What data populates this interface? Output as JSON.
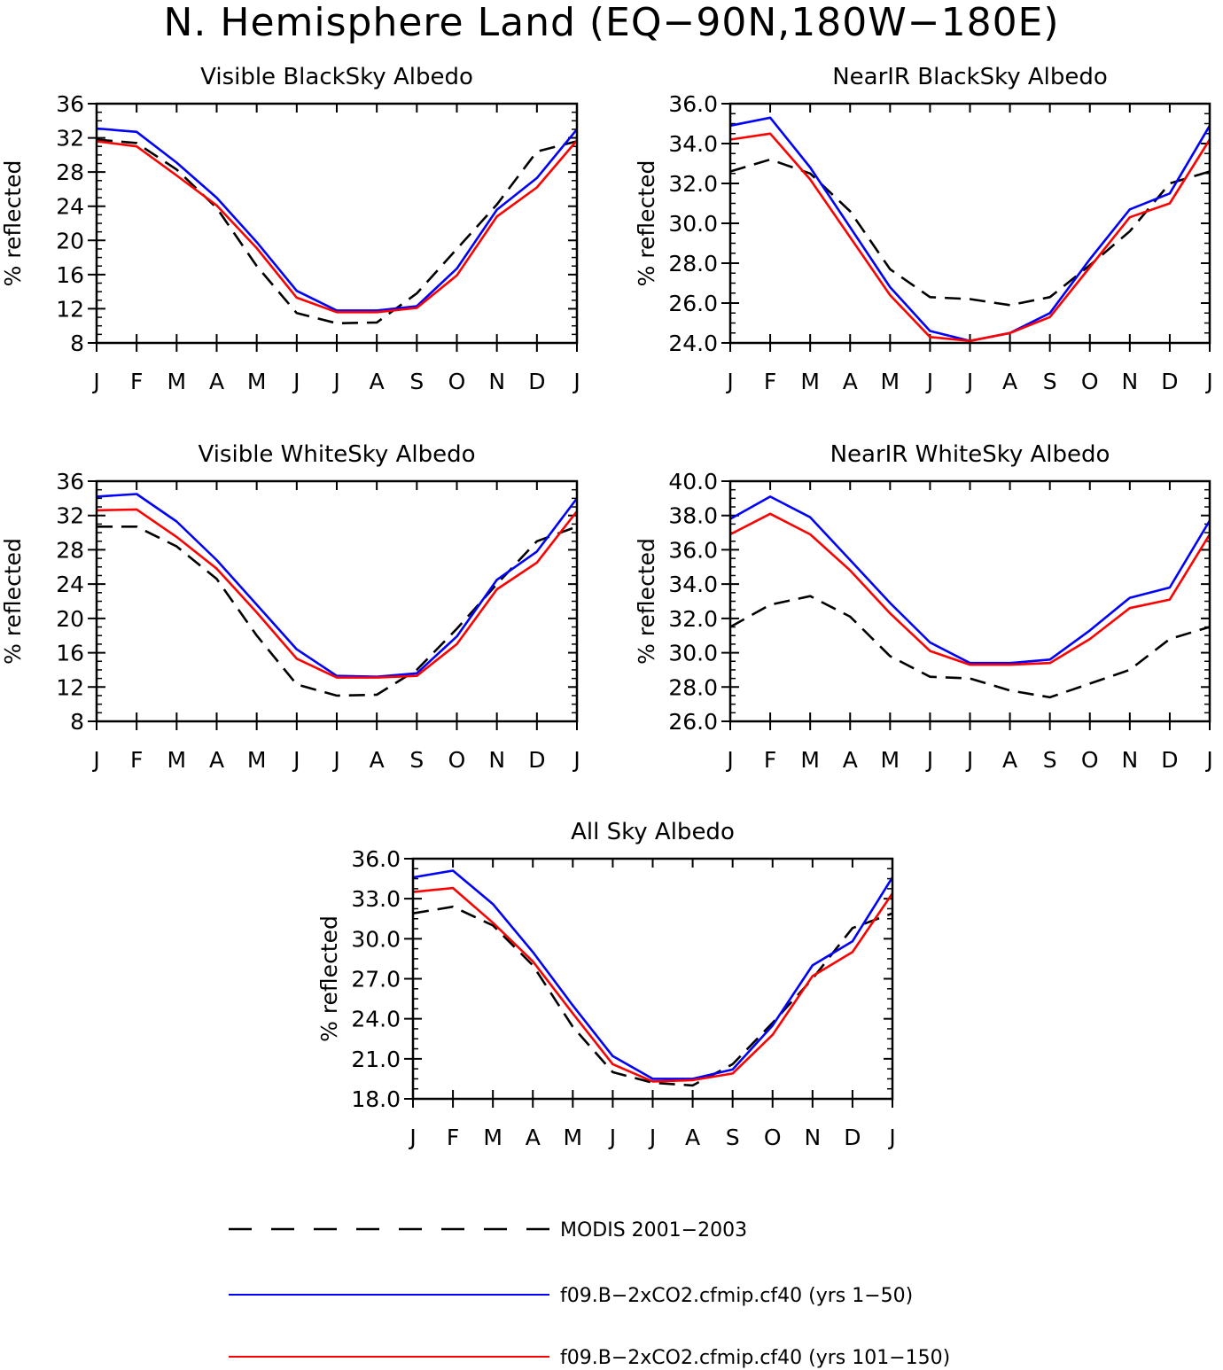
{
  "page": {
    "title": "N. Hemisphere Land (EQ−90N,180W−180E)"
  },
  "colors": {
    "modis": "#000000",
    "run1": "#0000ff",
    "run2": "#ff0000"
  },
  "legend": {
    "items": [
      {
        "key": "modis",
        "label": "MODIS 2001−2003",
        "style": "dashed"
      },
      {
        "key": "run1",
        "label": "f09.B−2xCO2.cfmip.cf40 (yrs 1−50)",
        "style": "solid"
      },
      {
        "key": "run2",
        "label": "f09.B−2xCO2.cfmip.cf40 (yrs 101−150)",
        "style": "solid"
      }
    ]
  },
  "chart_data": [
    {
      "type": "line",
      "title": "Visible BlackSky Albedo",
      "ylabel": "% reflected",
      "categories": [
        "J",
        "F",
        "M",
        "A",
        "M",
        "J",
        "J",
        "A",
        "S",
        "O",
        "N",
        "D",
        "J"
      ],
      "ylim": [
        8,
        36
      ],
      "yticks": [
        "8",
        "12",
        "16",
        "20",
        "24",
        "28",
        "32",
        "36"
      ],
      "series": [
        {
          "key": "modis",
          "values": [
            31.8,
            31.4,
            28.3,
            23.8,
            17.0,
            11.5,
            10.3,
            10.4,
            13.8,
            19.0,
            24.2,
            30.4,
            31.6
          ]
        },
        {
          "key": "run1",
          "values": [
            33.1,
            32.7,
            29.1,
            25.0,
            19.8,
            14.1,
            11.8,
            11.8,
            12.3,
            16.7,
            23.6,
            27.3,
            33.0
          ]
        },
        {
          "key": "run2",
          "values": [
            31.6,
            31.0,
            27.6,
            24.1,
            19.1,
            13.3,
            11.6,
            11.6,
            12.1,
            15.9,
            22.8,
            26.2,
            31.7
          ]
        }
      ]
    },
    {
      "type": "line",
      "title": "NearIR BlackSky Albedo",
      "ylabel": "% reflected",
      "categories": [
        "J",
        "F",
        "M",
        "A",
        "M",
        "J",
        "J",
        "A",
        "S",
        "O",
        "N",
        "D",
        "J"
      ],
      "ylim": [
        24,
        36
      ],
      "yticks": [
        "24.0",
        "26.0",
        "28.0",
        "30.0",
        "32.0",
        "34.0",
        "36.0"
      ],
      "series": [
        {
          "key": "modis",
          "values": [
            32.6,
            33.2,
            32.5,
            30.6,
            27.7,
            26.3,
            26.2,
            25.9,
            26.3,
            27.9,
            29.6,
            32.0,
            32.6
          ]
        },
        {
          "key": "run1",
          "values": [
            34.9,
            35.3,
            32.8,
            29.8,
            26.8,
            24.6,
            24.1,
            24.5,
            25.5,
            28.2,
            30.7,
            31.5,
            34.9
          ]
        },
        {
          "key": "run2",
          "values": [
            34.2,
            34.5,
            32.2,
            29.3,
            26.4,
            24.3,
            24.1,
            24.5,
            25.3,
            27.8,
            30.3,
            31.0,
            34.2
          ]
        }
      ]
    },
    {
      "type": "line",
      "title": "Visible WhiteSky Albedo",
      "ylabel": "% reflected",
      "categories": [
        "J",
        "F",
        "M",
        "A",
        "M",
        "J",
        "J",
        "A",
        "S",
        "O",
        "N",
        "D",
        "J"
      ],
      "ylim": [
        8,
        36
      ],
      "yticks": [
        "8",
        "12",
        "16",
        "20",
        "24",
        "28",
        "32",
        "36"
      ],
      "series": [
        {
          "key": "modis",
          "values": [
            30.7,
            30.7,
            28.4,
            24.6,
            18.0,
            12.3,
            11.0,
            11.1,
            14.0,
            18.8,
            24.0,
            29.0,
            30.7
          ]
        },
        {
          "key": "run1",
          "values": [
            34.2,
            34.5,
            31.3,
            26.8,
            21.6,
            16.4,
            13.3,
            13.2,
            13.6,
            17.9,
            24.5,
            27.8,
            34.0
          ]
        },
        {
          "key": "run2",
          "values": [
            32.6,
            32.7,
            29.5,
            25.8,
            20.7,
            15.3,
            13.1,
            13.1,
            13.3,
            17.0,
            23.4,
            26.5,
            32.5
          ]
        }
      ]
    },
    {
      "type": "line",
      "title": "NearIR WhiteSky Albedo",
      "ylabel": "% reflected",
      "categories": [
        "J",
        "F",
        "M",
        "A",
        "M",
        "J",
        "J",
        "A",
        "S",
        "O",
        "N",
        "D",
        "J"
      ],
      "ylim": [
        26,
        40
      ],
      "yticks": [
        "26.0",
        "28.0",
        "30.0",
        "32.0",
        "34.0",
        "36.0",
        "38.0",
        "40.0"
      ],
      "series": [
        {
          "key": "modis",
          "values": [
            31.5,
            32.8,
            33.3,
            32.1,
            29.8,
            28.6,
            28.5,
            27.8,
            27.4,
            28.2,
            29.0,
            30.8,
            31.5
          ]
        },
        {
          "key": "run1",
          "values": [
            37.8,
            39.1,
            37.9,
            35.4,
            32.9,
            30.6,
            29.4,
            29.4,
            29.6,
            31.3,
            33.2,
            33.8,
            37.7
          ]
        },
        {
          "key": "run2",
          "values": [
            36.9,
            38.1,
            36.9,
            34.8,
            32.3,
            30.1,
            29.3,
            29.3,
            29.4,
            30.8,
            32.6,
            33.1,
            36.9
          ]
        }
      ]
    },
    {
      "type": "line",
      "title": "All Sky Albedo",
      "ylabel": "% reflected",
      "categories": [
        "J",
        "F",
        "M",
        "A",
        "M",
        "J",
        "J",
        "A",
        "S",
        "O",
        "N",
        "D",
        "J"
      ],
      "ylim": [
        18,
        36
      ],
      "yticks": [
        "18.0",
        "21.0",
        "24.0",
        "27.0",
        "30.0",
        "33.0",
        "36.0"
      ],
      "series": [
        {
          "key": "modis",
          "values": [
            31.9,
            32.4,
            31.0,
            28.0,
            23.4,
            20.0,
            19.2,
            19.0,
            20.6,
            23.7,
            27.0,
            30.8,
            31.9
          ]
        },
        {
          "key": "run1",
          "values": [
            34.6,
            35.1,
            32.6,
            29.0,
            25.0,
            21.2,
            19.5,
            19.5,
            20.2,
            23.5,
            28.0,
            29.8,
            34.6
          ]
        },
        {
          "key": "run2",
          "values": [
            33.5,
            33.8,
            31.2,
            28.3,
            24.4,
            20.6,
            19.3,
            19.4,
            19.9,
            22.8,
            27.2,
            29.0,
            33.4
          ]
        }
      ]
    }
  ]
}
